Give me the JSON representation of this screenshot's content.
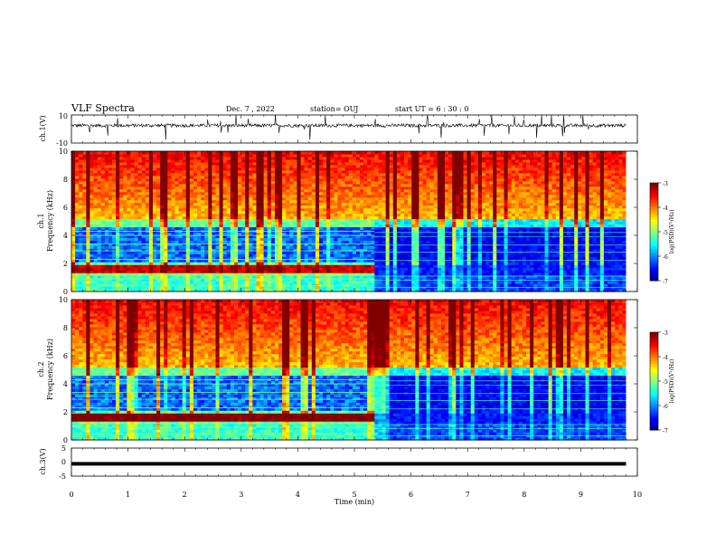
{
  "header": {
    "title": "VLF Spectra",
    "date": "Dec. 7 , 2022",
    "station": "station= OUJ",
    "start": "start  UT =   6 : 30 : 0"
  },
  "chart_data": [
    {
      "type": "line",
      "panel": "ch1-waveform",
      "ylabel": "ch.1(V)",
      "ylim": [
        -10,
        10
      ],
      "yticks": [
        "10",
        "-10"
      ],
      "baseline": 2.5,
      "color": "#000000"
    },
    {
      "type": "heatmap",
      "panel": "ch1-spectrogram",
      "ylabel": "ch.1 Frequency (kHz)",
      "ylim": [
        0,
        10
      ],
      "yticks": [
        "10",
        "8",
        "6",
        "4",
        "2",
        "0"
      ],
      "transition_min": 5.35,
      "colorbar": {
        "label": "log(PSD)(V²/Hz)",
        "ticks": [
          "-3",
          "-4",
          "-5",
          "-6",
          "-7"
        ],
        "range": [
          -7,
          -3
        ]
      }
    },
    {
      "type": "heatmap",
      "panel": "ch2-spectrogram",
      "ylabel": "ch.2 Frequency (kHz)",
      "ylim": [
        0,
        10
      ],
      "yticks": [
        "10",
        "8",
        "6",
        "4",
        "2",
        "0"
      ],
      "transition_min": 5.35,
      "colorbar": {
        "label": "log(PSD)(V²/Hz)",
        "ticks": [
          "-3",
          "-4",
          "-5",
          "-6",
          "-7"
        ],
        "range": [
          -7,
          -3
        ]
      }
    },
    {
      "type": "line",
      "panel": "ch3-waveform",
      "ylabel": "ch.3(V)",
      "ylim": [
        -5,
        5
      ],
      "yticks": [
        "5",
        "0",
        "-5"
      ],
      "baseline": -0.6,
      "color": "#000000"
    }
  ],
  "xaxis": {
    "label": "Time  (min)",
    "xlim": [
      0,
      10
    ],
    "ticks": [
      "0",
      "1",
      "2",
      "3",
      "4",
      "5",
      "6",
      "7",
      "8",
      "9",
      "10"
    ]
  }
}
